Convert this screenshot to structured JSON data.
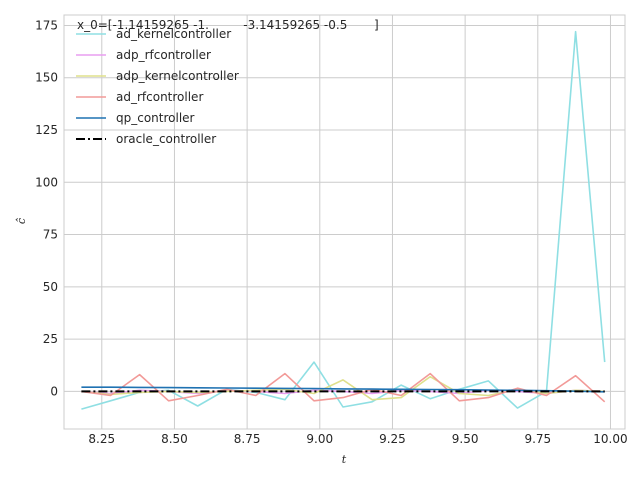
{
  "chart_data": {
    "type": "line",
    "title": "x_0=[-1.14159265 -1.         -3.14159265 -0.5       ]",
    "xlabel": "t",
    "ylabel": "ĉ",
    "xlim": [
      8.12,
      10.05
    ],
    "ylim": [
      -18,
      180
    ],
    "x_ticks": [
      8.25,
      8.5,
      8.75,
      9.0,
      9.25,
      9.5,
      9.75,
      10.0
    ],
    "x_tick_labels": [
      "8.25",
      "8.50",
      "8.75",
      "9.00",
      "9.25",
      "9.50",
      "9.75",
      "10.00"
    ],
    "y_ticks": [
      0,
      25,
      50,
      75,
      100,
      125,
      150,
      175
    ],
    "y_tick_labels": [
      "0",
      "25",
      "50",
      "75",
      "100",
      "125",
      "150",
      "175"
    ],
    "grid": true,
    "legend_position": "top-left",
    "x": [
      8.18,
      8.28,
      8.38,
      8.48,
      8.58,
      8.68,
      8.78,
      8.88,
      8.98,
      9.08,
      9.18,
      9.28,
      9.38,
      9.48,
      9.58,
      9.68,
      9.78,
      9.88,
      9.98
    ],
    "series": [
      {
        "name": "ad_kernelcontroller",
        "color": "#8fdfe3",
        "style": "solid",
        "values": [
          -8.5,
          -4.5,
          -0.5,
          0.5,
          -7,
          1,
          -0.5,
          -4,
          14,
          -7.5,
          -5,
          3,
          -3.5,
          1,
          5,
          -8,
          0,
          172,
          14
        ]
      },
      {
        "name": "adp_rfcontroller",
        "color": "#e89ef0",
        "style": "solid",
        "values": [
          0,
          -1,
          0.5,
          0,
          -1,
          0.5,
          0,
          -1,
          0.5,
          0,
          -1,
          0.5,
          0,
          -1,
          0.5,
          0,
          -1,
          0.5,
          0
        ]
      },
      {
        "name": "adp_kernelcontroller",
        "color": "#dfe08c",
        "style": "solid",
        "values": [
          0,
          -1.5,
          -0.5,
          0,
          -0.5,
          0,
          0.5,
          1,
          -1,
          5.5,
          -4,
          -3,
          7,
          -1,
          -2,
          1,
          -1,
          0.5,
          0
        ]
      },
      {
        "name": "ad_rfcontroller",
        "color": "#f29a98",
        "style": "solid",
        "values": [
          0,
          -2,
          8,
          -4.5,
          -2,
          1,
          -2,
          8.5,
          -4.5,
          -3,
          1,
          -2,
          8.5,
          -4.5,
          -3,
          1.5,
          -2,
          7.5,
          -5
        ]
      },
      {
        "name": "qp_controller",
        "color": "#1f72b2",
        "style": "solid",
        "values": [
          2,
          2,
          1.9,
          1.8,
          1.7,
          1.6,
          1.5,
          1.4,
          1.3,
          1.2,
          1.1,
          1,
          0.9,
          0.8,
          0.6,
          0.5,
          0.3,
          0.1,
          -0.2
        ]
      },
      {
        "name": "oracle_controller",
        "color": "#000000",
        "style": "dashdot",
        "values": [
          0,
          0,
          0,
          0,
          0,
          0,
          0,
          0,
          0,
          0,
          0,
          0,
          0,
          0,
          0,
          0,
          0,
          0,
          0
        ]
      }
    ]
  }
}
